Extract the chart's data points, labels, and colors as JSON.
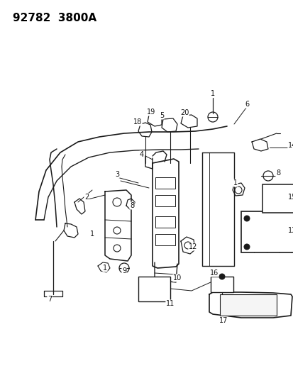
{
  "title": "92782  3800A",
  "bg_color": "#ffffff",
  "line_color": "#1a1a1a",
  "title_fontsize": 11,
  "label_fontsize": 7,
  "figsize": [
    4.14,
    5.33
  ],
  "dpi": 100
}
